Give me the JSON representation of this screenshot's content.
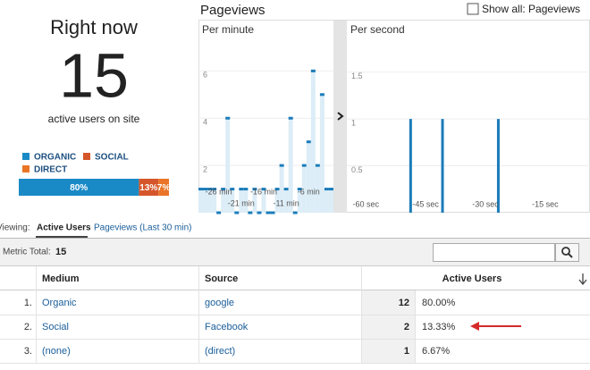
{
  "overview": {
    "title": "Right now",
    "count": 15,
    "caption": "active users on site"
  },
  "pageviews": {
    "title": "Pageviews",
    "show_all": "Show all: Pageviews"
  },
  "chart_data": [
    {
      "type": "stackedbar",
      "orientation": "horizontal",
      "xlim": [
        0,
        100
      ],
      "series": [
        {
          "name": "ORGANIC",
          "color": "#1a8ac6",
          "values": [
            80
          ],
          "value_labels": [
            "80%"
          ]
        },
        {
          "name": "SOCIAL",
          "color": "#d5562b",
          "values": [
            13
          ],
          "value_labels": [
            "13%"
          ]
        },
        {
          "name": "DIRECT",
          "color": "#ea7526",
          "values": [
            7
          ],
          "value_labels": [
            "7%"
          ]
        }
      ]
    },
    {
      "type": "bar",
      "title": "Per minute",
      "x": [
        -30,
        -29,
        -28,
        -27,
        -26,
        -25,
        -24,
        -23,
        -22,
        -21,
        -20,
        -19,
        -18,
        -17,
        -16,
        -15,
        -14,
        -13,
        -12,
        -11,
        -10,
        -9,
        -8,
        -7,
        -6,
        -5,
        -4,
        -3,
        -2,
        -1
      ],
      "values": [
        1,
        1,
        1,
        1,
        0,
        1,
        4,
        1,
        0,
        1,
        1,
        0,
        1,
        0,
        1,
        0,
        0,
        1,
        2,
        1,
        4,
        0,
        1,
        2,
        3,
        6,
        2,
        5,
        1,
        1
      ],
      "color": "#1b7cba",
      "fill": "#dcedf7",
      "xlim": [
        -30.5,
        -0.5
      ],
      "xticks": [
        {
          "value": -26,
          "label": "-26 min"
        },
        {
          "value": -21,
          "label": "-21 min"
        },
        {
          "value": -16,
          "label": "-16 min"
        },
        {
          "value": -11,
          "label": "-11 min"
        },
        {
          "value": -6,
          "label": "-6 min"
        }
      ],
      "ylim": [
        0,
        7.3
      ],
      "yticks": [
        2,
        4,
        6
      ],
      "grid": true
    },
    {
      "type": "bar",
      "title": "Per second",
      "x": [
        -45,
        -37,
        -23
      ],
      "values": [
        1,
        1,
        1
      ],
      "color": "#1b7cba",
      "xlim": [
        -61,
        0
      ],
      "xticks": [
        {
          "value": -60,
          "label": "-60 sec"
        },
        {
          "value": -45,
          "label": "-45 sec"
        },
        {
          "value": -30,
          "label": "-30 sec"
        },
        {
          "value": -15,
          "label": "-15 sec"
        }
      ],
      "ylim": [
        0,
        1.84
      ],
      "yticks": [
        0.5,
        1,
        1.5
      ],
      "grid": true
    }
  ],
  "viewing": {
    "label": "Viewing:",
    "tabs": [
      "Active Users",
      "Pageviews (Last 30 min)"
    ]
  },
  "metric_total": {
    "label": "Metric Total:",
    "value": 15
  },
  "table": {
    "headers": [
      "Medium",
      "Source",
      "Active Users"
    ],
    "rows": [
      [
        "1.",
        "Organic",
        "google",
        12,
        "80.00%"
      ],
      [
        "2.",
        "Social",
        "Facebook",
        2,
        "13.33%"
      ],
      [
        "3.",
        "(none)",
        "(direct)",
        1,
        "6.67%"
      ]
    ]
  }
}
